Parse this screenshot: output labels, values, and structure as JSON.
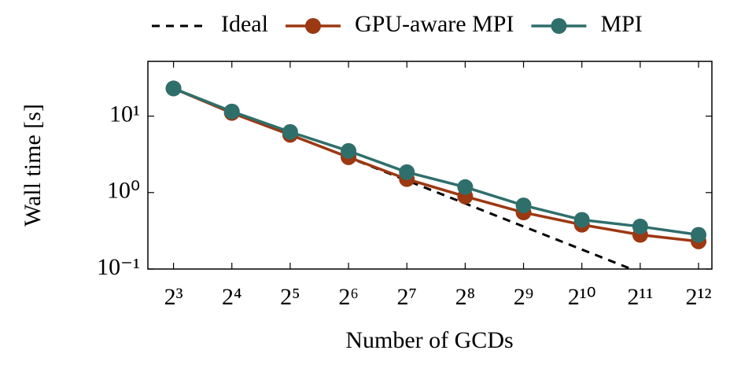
{
  "chart_data": {
    "type": "line",
    "x_label": "Number of GCDs",
    "y_label": "Wall time [s]",
    "x": [
      8,
      16,
      32,
      64,
      128,
      256,
      512,
      1024,
      2048,
      4096
    ],
    "xscale": "log",
    "yscale": "log",
    "xlim": [
      5.9,
      4800
    ],
    "ylim": [
      0.1,
      52
    ],
    "xticks": [
      {
        "value": 8,
        "label": "2³"
      },
      {
        "value": 16,
        "label": "2⁴"
      },
      {
        "value": 32,
        "label": "2⁵"
      },
      {
        "value": 64,
        "label": "2⁶"
      },
      {
        "value": 128,
        "label": "2⁷"
      },
      {
        "value": 256,
        "label": "2⁸"
      },
      {
        "value": 512,
        "label": "2⁹"
      },
      {
        "value": 1024,
        "label": "2¹⁰"
      },
      {
        "value": 2048,
        "label": "2¹¹"
      },
      {
        "value": 4096,
        "label": "2¹²"
      }
    ],
    "yticks": [
      {
        "value": 0.1,
        "label": "10⁻¹"
      },
      {
        "value": 1,
        "label": "10⁰"
      },
      {
        "value": 10,
        "label": "10¹"
      }
    ],
    "legend": "top",
    "series": [
      {
        "name": "Ideal",
        "color": "#000000",
        "linestyle": "dashed",
        "marker": "none",
        "values": [
          23,
          11.5,
          5.75,
          2.88,
          1.44,
          0.72,
          0.36,
          0.18,
          0.09,
          0.045
        ]
      },
      {
        "name": "GPU-aware MPI",
        "color": "#9c3812",
        "linestyle": "solid",
        "marker": "circle",
        "values": [
          23,
          11,
          5.7,
          2.9,
          1.5,
          0.89,
          0.55,
          0.38,
          0.28,
          0.23
        ]
      },
      {
        "name": "MPI",
        "color": "#2f6f6b",
        "linestyle": "solid",
        "marker": "circle",
        "values": [
          23,
          11.5,
          6.2,
          3.5,
          1.85,
          1.18,
          0.68,
          0.44,
          0.36,
          0.28
        ]
      }
    ]
  }
}
